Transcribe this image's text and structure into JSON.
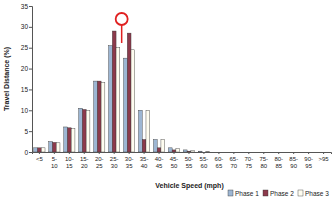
{
  "chart_data": {
    "type": "bar",
    "x_label": "Vehicle Speed (mph)",
    "y_label": "Travel Distance (%)",
    "categories": [
      "<5",
      "5-10",
      "10-15",
      "15-20",
      "20-25",
      "25-30",
      "30-35",
      "35-40",
      "40-45",
      "45-50",
      "50-55",
      "55-60",
      "60-65",
      "65-70",
      "70-75",
      "75-80",
      "80-85",
      "85-90",
      "90-95",
      ">95"
    ],
    "series": [
      {
        "name": "Phase 1",
        "color": "#9db6d3",
        "values": [
          1,
          2.5,
          6,
          10.5,
          17,
          25.5,
          22.5,
          10,
          3,
          1,
          0.5,
          0.2,
          0,
          0,
          0,
          0,
          0,
          0,
          0,
          0
        ]
      },
      {
        "name": "Phase 2",
        "color": "#8c3a4c",
        "values": [
          1,
          2.3,
          5.8,
          10.2,
          17,
          29,
          28.5,
          3,
          1,
          0.5,
          0.2,
          0,
          0,
          0,
          0,
          0,
          0,
          0,
          0,
          0
        ]
      },
      {
        "name": "Phase 3",
        "color": "#fffdf0",
        "values": [
          1,
          2.2,
          5.6,
          10,
          16.7,
          25,
          24.5,
          10,
          3,
          0.8,
          0.3,
          0.1,
          0,
          0,
          0,
          0,
          0,
          0,
          0,
          0
        ]
      }
    ],
    "ylim": [
      0,
      35
    ],
    "yticks": [
      0,
      5,
      10,
      15,
      20,
      25,
      30,
      35
    ],
    "grid": false,
    "legend": "bottom"
  }
}
